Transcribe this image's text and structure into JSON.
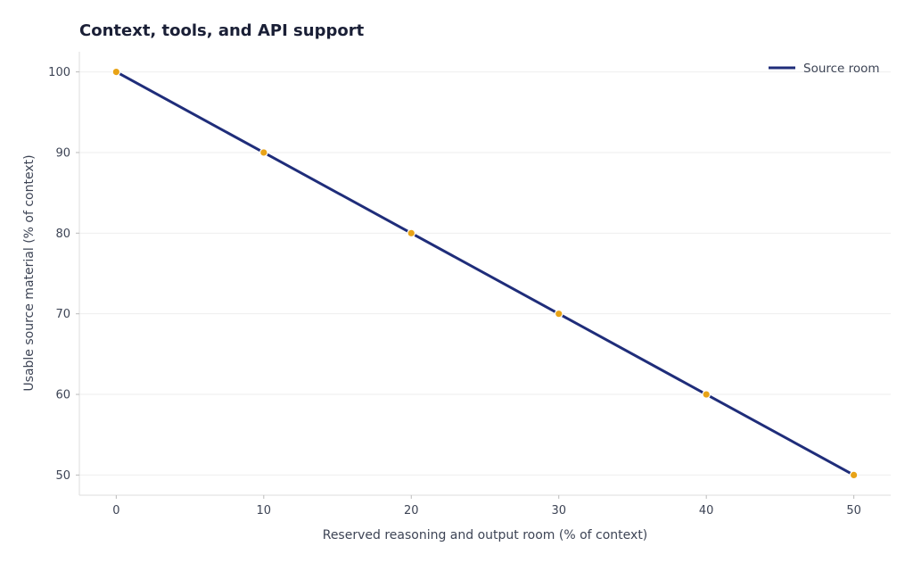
{
  "chart_data": {
    "type": "line",
    "title": "Context, tools, and API support",
    "xlabel": "Reserved reasoning and output room (% of context)",
    "ylabel": "Usable source material (% of context)",
    "xlim": [
      -2.5,
      52.5
    ],
    "ylim": [
      47.5,
      102.5
    ],
    "xticks": [
      0,
      10,
      20,
      30,
      40,
      50
    ],
    "yticks": [
      50,
      60,
      70,
      80,
      90,
      100
    ],
    "grid": "horizontal",
    "legend_position": "top-right",
    "series": [
      {
        "name": "Source room",
        "color": "#1f2d7a",
        "marker_color": "#e8a317",
        "x": [
          0,
          10,
          20,
          30,
          40,
          50
        ],
        "y": [
          100,
          90,
          80,
          70,
          60,
          50
        ]
      }
    ]
  }
}
